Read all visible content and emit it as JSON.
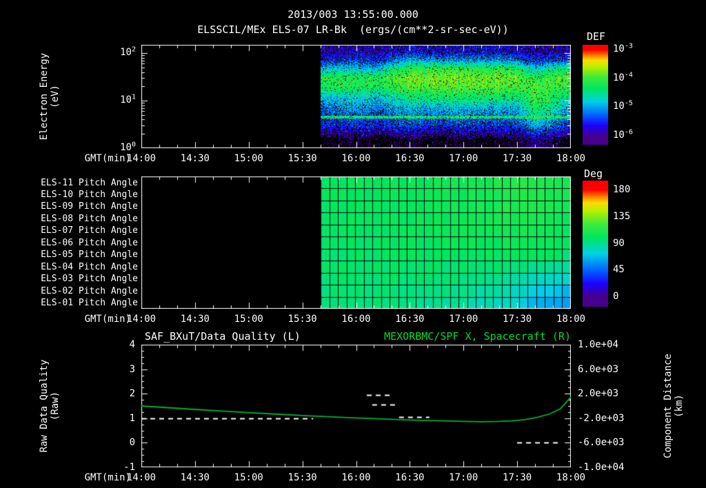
{
  "header": {
    "datetime": "2013/003 13:55:00.000",
    "instrument_title": "ELSSCIL/MEx ELS-07 LR-Bk",
    "units": "(ergs/(cm**2-sr-sec-eV))"
  },
  "spectrogram_panel": {
    "colorbar_label": "DEF",
    "colorbar_ticks": [
      {
        "base": "10",
        "exp": "-3"
      },
      {
        "base": "10",
        "exp": "-4"
      },
      {
        "base": "10",
        "exp": "-5"
      },
      {
        "base": "10",
        "exp": "-6"
      }
    ],
    "ylabel_line1": "Electron Energy",
    "ylabel_line2": "(eV)",
    "yticks": [
      {
        "base": "10",
        "exp": "2"
      },
      {
        "base": "10",
        "exp": "1"
      },
      {
        "base": "10",
        "exp": "0"
      }
    ],
    "xlabel": "GMT(min)"
  },
  "pitch_panel": {
    "row_labels": [
      "ELS-11 Pitch Angle",
      "ELS-10 Pitch Angle",
      "ELS-09 Pitch Angle",
      "ELS-08 Pitch Angle",
      "ELS-07 Pitch Angle",
      "ELS-06 Pitch Angle",
      "ELS-05 Pitch Angle",
      "ELS-04 Pitch Angle",
      "ELS-03 Pitch Angle",
      "ELS-02 Pitch Angle",
      "ELS-01 Pitch Angle"
    ],
    "colorbar_label": "Deg",
    "colorbar_ticks": [
      "180",
      "135",
      "90",
      "45",
      "0"
    ],
    "xlabel": "GMT(min)"
  },
  "timeseries_panel": {
    "title_left": "SAF_BXuT/Data Quality (L)",
    "title_right": "MEXORBMC/SPF X, Spacecraft (R)",
    "ylabel_left_line1": "Raw Data Quality",
    "ylabel_left_line2": "(Raw)",
    "ylabel_right_line1": "Component Distance",
    "ylabel_right_line2": "(km)",
    "yticks_left": [
      "4",
      "3",
      "2",
      "1",
      "0",
      "-1"
    ],
    "yticks_right": [
      "1.0e+04",
      "6.0e+03",
      "2.0e+03",
      "-2.0e+03",
      "-6.0e+03",
      "-1.0e+04"
    ],
    "xlabel": "GMT(min)"
  },
  "xticks": [
    "14:00",
    "14:30",
    "15:00",
    "15:30",
    "16:00",
    "16:30",
    "17:00",
    "17:30",
    "18:00"
  ],
  "colors": {
    "background": "#000000",
    "text": "#ffffff",
    "title_green": "#00dd33",
    "curve_green": "#00b339",
    "colormap": "rainbow"
  },
  "chart_data": [
    {
      "id": "electron_energy_spectrogram",
      "type": "heatmap",
      "title": "ELSSCIL/MEx ELS-07 LR-Bk",
      "units": "ergs/(cm**2-sr-sec-eV)",
      "x": {
        "label": "GMT(min)",
        "range_minutes": [
          0,
          240
        ],
        "start_label": "14:00",
        "end_label": "18:00",
        "major_tick_min": 30,
        "minor_tick_min": 10
      },
      "y": {
        "label": "Electron Energy (eV)",
        "scale": "log",
        "range_eV": [
          1,
          150
        ],
        "tick_values": [
          1,
          10,
          100
        ]
      },
      "colorbar": {
        "label": "DEF",
        "scale": "log",
        "range": [
          1e-06,
          0.001
        ],
        "tick_values": [
          0.001,
          0.0001,
          1e-05,
          1e-06
        ]
      },
      "data_start_minute": 100,
      "grid": {
        "rows_order": "low_energy_first",
        "time_minutes": [
          100,
          110,
          120,
          130,
          140,
          150,
          160,
          170,
          180,
          190,
          200,
          210,
          220,
          230,
          240
        ],
        "energy_eV": [
          1.5,
          3,
          4.5,
          7,
          12,
          20,
          30,
          45,
          70,
          110
        ],
        "log10_flux": [
          [
            -6.2,
            -6.2,
            -6.1,
            -6.2,
            -6.2,
            -6.1,
            -6.2,
            -6.2,
            -6.1,
            -6.2,
            -6.2,
            -6.1,
            -5.8,
            -6.0,
            -6.2
          ],
          [
            -5.4,
            -5.5,
            -5.4,
            -5.5,
            -5.4,
            -5.3,
            -5.4,
            -5.4,
            -5.3,
            -5.4,
            -5.4,
            -5.3,
            -4.9,
            -5.1,
            -5.4
          ],
          [
            -4.35,
            -4.3,
            -4.35,
            -4.3,
            -4.3,
            -4.25,
            -4.3,
            -4.3,
            -4.25,
            -4.3,
            -4.3,
            -4.3,
            -4.1,
            -4.2,
            -4.3
          ],
          [
            -5.1,
            -5.1,
            -5.0,
            -5.1,
            -5.0,
            -4.9,
            -4.9,
            -4.9,
            -4.8,
            -4.9,
            -4.9,
            -4.9,
            -4.2,
            -4.5,
            -5.0
          ],
          [
            -4.8,
            -4.8,
            -4.7,
            -4.8,
            -4.6,
            -4.4,
            -4.3,
            -4.3,
            -4.3,
            -4.3,
            -4.3,
            -4.4,
            -4.0,
            -4.2,
            -4.5
          ],
          [
            -4.2,
            -4.15,
            -4.2,
            -4.2,
            -4.1,
            -3.95,
            -3.9,
            -3.9,
            -3.9,
            -3.9,
            -3.95,
            -4.0,
            -3.95,
            -4.0,
            -4.0
          ],
          [
            -4.15,
            -4.1,
            -4.2,
            -4.15,
            -4.0,
            -3.85,
            -3.8,
            -3.8,
            -3.8,
            -3.85,
            -3.85,
            -3.9,
            -4.1,
            -3.95,
            -3.9
          ],
          [
            -4.8,
            -4.7,
            -4.8,
            -4.8,
            -4.4,
            -4.1,
            -4.0,
            -4.0,
            -4.05,
            -4.1,
            -4.1,
            -4.2,
            -4.7,
            -4.4,
            -4.2
          ],
          [
            -5.4,
            -5.4,
            -5.3,
            -5.4,
            -5.2,
            -4.9,
            -4.9,
            -5.0,
            -5.0,
            -5.0,
            -5.0,
            -5.1,
            -5.4,
            -5.3,
            -5.2
          ],
          [
            -5.8,
            -5.8,
            -5.7,
            -5.8,
            -5.7,
            -5.6,
            -5.6,
            -5.7,
            -5.6,
            -5.6,
            -5.6,
            -5.7,
            -5.8,
            -5.8,
            -5.7
          ]
        ]
      }
    },
    {
      "id": "pitch_angle",
      "type": "heatmap",
      "row_labels_top_to_bottom": [
        "ELS-11",
        "ELS-10",
        "ELS-09",
        "ELS-08",
        "ELS-07",
        "ELS-06",
        "ELS-05",
        "ELS-04",
        "ELS-03",
        "ELS-02",
        "ELS-01"
      ],
      "x": {
        "label": "GMT(min)",
        "range_minutes": [
          0,
          240
        ],
        "major_tick_min": 30,
        "minor_tick_min": 10
      },
      "colorbar": {
        "label": "Deg",
        "range": [
          0,
          180
        ],
        "tick_values": [
          180,
          135,
          90,
          45,
          0
        ]
      },
      "data_start_minute": 100,
      "n_time_cells": 29,
      "grid": {
        "time_minutes": [
          100,
          110,
          120,
          130,
          140,
          150,
          160,
          170,
          180,
          190,
          200,
          210,
          220,
          230,
          240
        ],
        "pitch_angle_deg": [
          [
            100,
            100,
            101,
            100,
            101,
            102,
            103,
            104,
            105,
            107,
            110,
            113,
            112,
            108,
            104
          ],
          [
            100,
            100,
            100,
            100,
            101,
            102,
            102,
            103,
            104,
            106,
            109,
            112,
            111,
            107,
            103
          ],
          [
            99,
            100,
            100,
            100,
            100,
            101,
            102,
            103,
            104,
            105,
            108,
            110,
            110,
            106,
            102
          ],
          [
            99,
            99,
            100,
            99,
            100,
            101,
            101,
            102,
            103,
            104,
            106,
            108,
            108,
            104,
            100
          ],
          [
            98,
            99,
            99,
            99,
            99,
            100,
            100,
            101,
            102,
            103,
            104,
            105,
            105,
            102,
            99
          ],
          [
            98,
            98,
            98,
            98,
            99,
            99,
            100,
            100,
            101,
            101,
            102,
            103,
            103,
            100,
            97
          ],
          [
            97,
            97,
            98,
            97,
            98,
            98,
            99,
            99,
            99,
            100,
            100,
            100,
            99,
            97,
            94
          ],
          [
            96,
            97,
            97,
            97,
            97,
            97,
            97,
            97,
            97,
            97,
            96,
            95,
            92,
            89,
            86
          ],
          [
            95,
            96,
            96,
            96,
            96,
            95,
            95,
            94,
            93,
            92,
            90,
            87,
            82,
            78,
            74
          ],
          [
            94,
            95,
            95,
            95,
            94,
            93,
            92,
            91,
            89,
            87,
            84,
            80,
            73,
            68,
            64
          ],
          [
            93,
            94,
            94,
            94,
            93,
            92,
            90,
            88,
            86,
            83,
            79,
            74,
            66,
            61,
            58
          ]
        ]
      }
    },
    {
      "id": "quality_and_distance",
      "type": "line",
      "x": {
        "label": "GMT(min)",
        "range_minutes": [
          0,
          240
        ],
        "major_tick_min": 30,
        "minor_tick_min": 10
      },
      "y_left": {
        "label": "Raw Data Quality (Raw)",
        "range": [
          -1,
          4
        ],
        "ticks": [
          4,
          3,
          2,
          1,
          0,
          -1
        ]
      },
      "y_right": {
        "label": "Component Distance (km)",
        "range": [
          -10000,
          10000
        ],
        "ticks": [
          10000,
          6000,
          2000,
          -2000,
          -6000,
          -10000
        ]
      },
      "series": [
        {
          "name": "MEXORBMC/SPF X, Spacecraft (R)",
          "axis": "right",
          "color": "#00b339",
          "style": "solid",
          "points_min_km": [
            [
              0,
              0
            ],
            [
              15,
              -280
            ],
            [
              30,
              -560
            ],
            [
              45,
              -840
            ],
            [
              60,
              -1080
            ],
            [
              75,
              -1320
            ],
            [
              90,
              -1560
            ],
            [
              105,
              -1760
            ],
            [
              120,
              -1960
            ],
            [
              135,
              -2120
            ],
            [
              150,
              -2280
            ],
            [
              165,
              -2400
            ],
            [
              180,
              -2520
            ],
            [
              190,
              -2560
            ],
            [
              200,
              -2520
            ],
            [
              207,
              -2440
            ],
            [
              214,
              -2240
            ],
            [
              221,
              -1880
            ],
            [
              228,
              -1320
            ],
            [
              234,
              -480
            ],
            [
              240,
              1440
            ]
          ]
        },
        {
          "name": "SAF_BXuT/Data Quality (L)",
          "axis": "left",
          "color": "#ffffff",
          "style": "dashed",
          "segments": [
            {
              "t_min": [
                0,
                96
              ],
              "quality": 1.0
            },
            {
              "t_min": [
                126,
                140
              ],
              "quality": 1.95
            },
            {
              "t_min": [
                129,
                144
              ],
              "quality": 1.55
            },
            {
              "t_min": [
                144,
                161
              ],
              "quality": 1.05
            },
            {
              "t_min": [
                210,
                235
              ],
              "quality": 0.0
            }
          ]
        }
      ]
    }
  ]
}
